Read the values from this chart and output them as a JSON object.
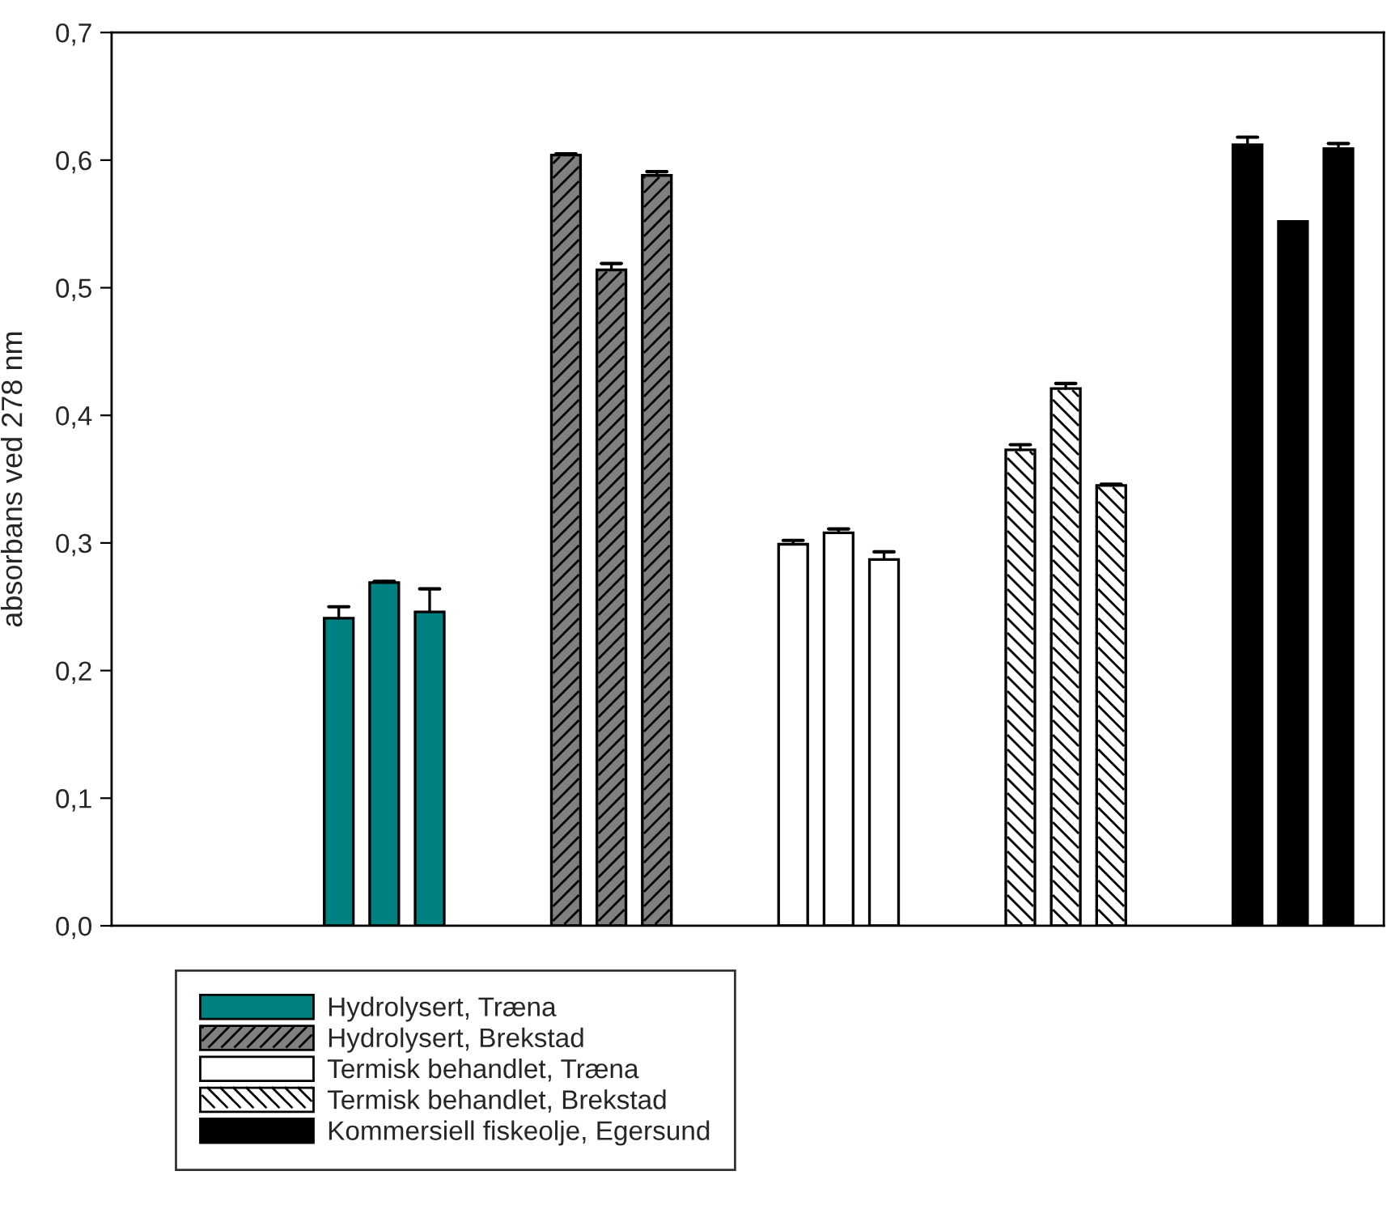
{
  "chart_data": {
    "type": "bar",
    "ylabel": "absorbans ved 278 nm",
    "categories": [
      null,
      null,
      null,
      null,
      null,
      null,
      null,
      null,
      null,
      null,
      null,
      null,
      null,
      null,
      null,
      null,
      null,
      null,
      null,
      null,
      null,
      null,
      null,
      null,
      null,
      null,
      null
    ],
    "series": [
      {
        "name": "Hydrolysert, Træna",
        "color": "#008080",
        "values": [
          null,
          null,
          null,
          null,
          0.241,
          0.269,
          0.246,
          null,
          null,
          null,
          null,
          null,
          null,
          null,
          null,
          null,
          null,
          null,
          null,
          null,
          null,
          null,
          null,
          null,
          null,
          null,
          null
        ],
        "errors": [
          null,
          null,
          null,
          null,
          [
            0.241,
            0.25
          ],
          [
            0.269,
            0.27
          ],
          [
            0.246,
            0.264
          ],
          null,
          null,
          null,
          null,
          null,
          null,
          null,
          null,
          null,
          null,
          null,
          null,
          null,
          null,
          null,
          null,
          null,
          null,
          null,
          null
        ]
      },
      {
        "name": "Hydrolysert, Brekstad",
        "color": "#808080",
        "values": [
          null,
          null,
          null,
          null,
          null,
          null,
          null,
          null,
          null,
          0.604,
          0.514,
          0.588,
          null,
          null,
          null,
          null,
          null,
          null,
          null,
          null,
          null,
          null,
          null,
          null,
          null,
          null,
          null
        ],
        "errors": [
          null,
          null,
          null,
          null,
          null,
          null,
          null,
          null,
          null,
          [
            0.604,
            0.605
          ],
          [
            0.514,
            0.519
          ],
          [
            0.588,
            0.591
          ],
          null,
          null,
          null,
          null,
          null,
          null,
          null,
          null,
          null,
          null,
          null,
          null,
          null,
          null,
          null
        ]
      },
      {
        "name": "Termisk behandlet, Træna",
        "color": "#ffffff",
        "values": [
          null,
          null,
          null,
          null,
          null,
          null,
          null,
          null,
          null,
          null,
          null,
          null,
          null,
          null,
          0.299,
          0.308,
          0.287,
          null,
          null,
          null,
          null,
          null,
          null,
          null,
          null,
          null,
          null
        ],
        "errors": [
          null,
          null,
          null,
          null,
          null,
          null,
          null,
          null,
          null,
          null,
          null,
          null,
          null,
          null,
          [
            0.299,
            0.302
          ],
          [
            0.308,
            0.311
          ],
          [
            0.287,
            0.293
          ],
          null,
          null,
          null,
          null,
          null,
          null,
          null,
          null,
          null,
          null
        ]
      },
      {
        "name": "Termisk behandlet, Brekstad",
        "color": "#ffffff",
        "values": [
          null,
          null,
          null,
          null,
          null,
          null,
          null,
          null,
          null,
          null,
          null,
          null,
          null,
          null,
          null,
          null,
          null,
          null,
          null,
          0.373,
          0.421,
          0.345,
          null,
          null,
          null,
          null,
          null
        ],
        "errors": [
          null,
          null,
          null,
          null,
          null,
          null,
          null,
          null,
          null,
          null,
          null,
          null,
          null,
          null,
          null,
          null,
          null,
          null,
          null,
          [
            0.373,
            0.377
          ],
          [
            0.421,
            0.425
          ],
          [
            0.345,
            0.346
          ],
          null,
          null,
          null,
          null,
          null
        ]
      },
      {
        "name": "Kommersiell fiskeolje, Egersund",
        "color": "#000000",
        "values": [
          null,
          null,
          null,
          null,
          null,
          null,
          null,
          null,
          null,
          null,
          null,
          null,
          null,
          null,
          null,
          null,
          null,
          null,
          null,
          null,
          null,
          null,
          null,
          null,
          0.612,
          0.552,
          0.609
        ],
        "errors": [
          null,
          null,
          null,
          null,
          null,
          null,
          null,
          null,
          null,
          null,
          null,
          null,
          null,
          null,
          null,
          null,
          null,
          null,
          null,
          null,
          null,
          null,
          null,
          null,
          [
            0.612,
            0.618
          ],
          null,
          [
            0.609,
            0.613
          ]
        ]
      }
    ],
    "ylim": [
      0,
      0.7
    ],
    "yticks": [
      {
        "value": 0,
        "label": "0,0"
      },
      {
        "value": 0.1,
        "label": "0,1"
      },
      {
        "value": 0.2,
        "label": "0,2"
      },
      {
        "value": 0.3,
        "label": "0,3"
      },
      {
        "value": 0.4,
        "label": "0,4"
      },
      {
        "value": 0.5,
        "label": "0,5"
      },
      {
        "value": 0.6,
        "label": "0,6"
      },
      {
        "value": 0.7,
        "label": "0,7"
      }
    ],
    "grid": false,
    "legend": "bottom left"
  }
}
